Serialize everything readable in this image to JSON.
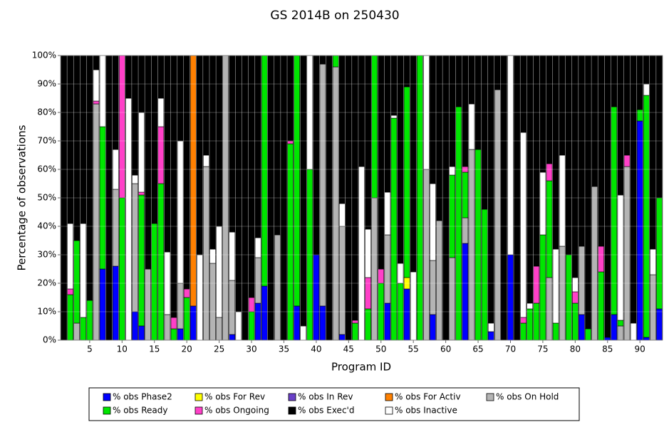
{
  "chart_data": {
    "type": "stacked_bar",
    "title": "GS 2014B on 250430",
    "x_label": "Program ID",
    "y_label": "Percentage of observations",
    "categories": [
      null,
      null,
      null,
      null,
      5,
      null,
      null,
      null,
      null,
      10,
      null,
      null,
      null,
      null,
      15,
      null,
      null,
      null,
      null,
      20,
      null,
      null,
      null,
      null,
      25,
      null,
      null,
      null,
      null,
      30,
      null,
      null,
      null,
      null,
      35,
      null,
      null,
      null,
      null,
      40,
      null,
      null,
      null,
      null,
      45,
      null,
      null,
      null,
      null,
      50,
      null,
      null,
      null,
      null,
      55,
      null,
      null,
      null,
      null,
      60,
      null,
      null,
      null,
      null,
      65,
      null,
      null,
      null,
      null,
      70,
      null,
      null,
      null,
      null,
      75,
      null,
      null,
      null,
      null,
      80,
      null,
      null,
      null,
      null,
      85,
      null,
      null,
      null,
      null,
      90,
      null,
      null,
      null
    ],
    "ylim": [
      0,
      100
    ],
    "yticks": [
      {
        "value": 0,
        "label": "0%"
      },
      {
        "value": 10,
        "label": "10%"
      },
      {
        "value": 20,
        "label": "20%"
      },
      {
        "value": 30,
        "label": "30%"
      },
      {
        "value": 40,
        "label": "40%"
      },
      {
        "value": 50,
        "label": "50%"
      },
      {
        "value": 60,
        "label": "60%"
      },
      {
        "value": 70,
        "label": "70%"
      },
      {
        "value": 80,
        "label": "80%"
      },
      {
        "value": 90,
        "label": "90%"
      },
      {
        "value": 100,
        "label": "100%"
      }
    ],
    "grid": true,
    "series": [
      {
        "name": "% obs Phase2",
        "color": "#0000ff",
        "values": [
          0,
          0,
          0,
          0,
          0,
          0,
          25,
          0,
          26,
          0,
          0,
          10,
          5,
          0,
          0,
          0,
          0,
          0,
          4,
          0,
          12,
          0,
          0,
          0,
          0,
          0,
          2,
          0,
          0,
          0,
          13,
          19,
          0,
          0,
          0,
          0,
          12,
          0,
          0,
          30,
          12,
          0,
          0,
          2,
          0,
          0,
          0,
          0,
          0,
          0,
          13,
          0,
          0,
          18,
          0,
          0,
          0,
          9,
          0,
          0,
          0,
          0,
          34,
          0,
          0,
          0,
          3,
          0,
          0,
          30,
          0,
          0,
          0,
          0,
          0,
          0,
          0,
          0,
          0,
          0,
          9,
          0,
          0,
          0,
          1,
          9,
          0,
          0,
          0,
          77,
          1,
          0,
          11
        ]
      },
      {
        "name": "% obs For Rev",
        "color": "#ffff00",
        "values": [
          0,
          0,
          0,
          0,
          0,
          0,
          0,
          0,
          0,
          0,
          0,
          0,
          0,
          0,
          0,
          0,
          0,
          0,
          0,
          0,
          0,
          0,
          0,
          0,
          0,
          0,
          0,
          0,
          0,
          0,
          0,
          0,
          0,
          0,
          0,
          0,
          0,
          0,
          0,
          0,
          0,
          0,
          0,
          0,
          0,
          0,
          0,
          0,
          0,
          0,
          0,
          0,
          0,
          4,
          0,
          0,
          0,
          0,
          0,
          0,
          0,
          0,
          0,
          0,
          0,
          0,
          0,
          0,
          0,
          0,
          0,
          0,
          0,
          0,
          0,
          0,
          0,
          0,
          0,
          0,
          0,
          0,
          0,
          0,
          0,
          0,
          0,
          0,
          0,
          0,
          0,
          0,
          0
        ]
      },
      {
        "name": "% obs In Rev",
        "color": "#6a40c8",
        "values": [
          0,
          0,
          0,
          0,
          0,
          0,
          0,
          0,
          0,
          0,
          0,
          0,
          0,
          0,
          0,
          0,
          0,
          0,
          0,
          0,
          0,
          0,
          0,
          0,
          0,
          0,
          0,
          0,
          0,
          0,
          0,
          0,
          0,
          0,
          0,
          0,
          0,
          0,
          0,
          0,
          0,
          0,
          0,
          0,
          0,
          0,
          0,
          0,
          0,
          0,
          0,
          0,
          0,
          0,
          0,
          0,
          0,
          0,
          0,
          0,
          0,
          0,
          0,
          0,
          0,
          0,
          0,
          0,
          0,
          0,
          0,
          0,
          0,
          0,
          0,
          0,
          0,
          0,
          0,
          0,
          0,
          0,
          0,
          0,
          0,
          0,
          0,
          0,
          0,
          0,
          0,
          0,
          0
        ]
      },
      {
        "name": "% obs For Activ",
        "color": "#ff8000",
        "values": [
          0,
          0,
          0,
          0,
          0,
          0,
          0,
          0,
          0,
          0,
          0,
          0,
          0,
          0,
          0,
          0,
          0,
          0,
          0,
          0,
          88,
          0,
          0,
          0,
          0,
          0,
          0,
          0,
          0,
          0,
          0,
          0,
          0,
          0,
          0,
          0,
          0,
          0,
          0,
          0,
          0,
          0,
          0,
          0,
          0,
          0,
          0,
          0,
          0,
          0,
          0,
          0,
          0,
          0,
          0,
          0,
          0,
          0,
          0,
          0,
          0,
          0,
          0,
          0,
          0,
          0,
          0,
          0,
          0,
          0,
          0,
          0,
          0,
          0,
          0,
          0,
          0,
          0,
          0,
          0,
          0,
          0,
          0,
          0,
          0,
          0,
          0,
          0,
          0,
          0,
          0,
          0,
          0
        ]
      },
      {
        "name": "% obs On Hold",
        "color": "#b4b4b4",
        "values": [
          0,
          0,
          6,
          0,
          0,
          83,
          0,
          0,
          27,
          0,
          0,
          45,
          0,
          25,
          0,
          0,
          9,
          0,
          16,
          0,
          0,
          0,
          61,
          27,
          8,
          100,
          19,
          0,
          0,
          0,
          16,
          0,
          0,
          37,
          0,
          0,
          0,
          0,
          0,
          0,
          85,
          0,
          96,
          38,
          0,
          0,
          0,
          0,
          50,
          0,
          24,
          0,
          0,
          0,
          0,
          0,
          60,
          19,
          42,
          0,
          29,
          0,
          9,
          67,
          0,
          0,
          0,
          88,
          0,
          0,
          0,
          0,
          0,
          0,
          0,
          22,
          0,
          33,
          0,
          0,
          24,
          0,
          54,
          0,
          0,
          0,
          5,
          61,
          0,
          0,
          0,
          23,
          0
        ]
      },
      {
        "name": "% obs Ready",
        "color": "#00e600",
        "values": [
          0,
          16,
          29,
          8,
          14,
          0,
          50,
          0,
          0,
          50,
          0,
          0,
          46,
          0,
          41,
          55,
          0,
          4,
          0,
          15,
          0,
          0,
          0,
          0,
          0,
          0,
          0,
          0,
          0,
          10,
          0,
          81,
          0,
          0,
          0,
          69,
          88,
          0,
          60,
          0,
          0,
          0,
          4,
          0,
          0,
          6,
          0,
          11,
          50,
          20,
          0,
          78,
          20,
          67,
          0,
          100,
          0,
          0,
          0,
          0,
          29,
          82,
          16,
          0,
          67,
          46,
          0,
          0,
          0,
          0,
          0,
          6,
          11,
          13,
          37,
          34,
          6,
          0,
          30,
          13,
          0,
          4,
          0,
          24,
          0,
          73,
          2,
          0,
          0,
          4,
          85,
          0,
          39
        ]
      },
      {
        "name": "% obs Ongoing",
        "color": "#ff40c8",
        "values": [
          0,
          2,
          0,
          0,
          0,
          1,
          0,
          0,
          0,
          50,
          0,
          0,
          1,
          0,
          0,
          20,
          0,
          4,
          0,
          3,
          0,
          0,
          0,
          0,
          0,
          0,
          0,
          0,
          0,
          5,
          0,
          0,
          0,
          0,
          0,
          1,
          0,
          0,
          0,
          0,
          0,
          0,
          0,
          0,
          0,
          1,
          0,
          11,
          0,
          5,
          0,
          0,
          0,
          0,
          0,
          0,
          0,
          0,
          0,
          0,
          0,
          0,
          2,
          0,
          0,
          0,
          0,
          0,
          0,
          0,
          0,
          2,
          0,
          13,
          0,
          6,
          0,
          0,
          0,
          4,
          0,
          0,
          0,
          9,
          0,
          0,
          0,
          4,
          0,
          0,
          0,
          0,
          0
        ]
      },
      {
        "name": "% obs Exec'd",
        "color": "#000000",
        "values": [
          100,
          59,
          65,
          59,
          86,
          5,
          0,
          100,
          33,
          0,
          15,
          42,
          20,
          75,
          59,
          15,
          69,
          92,
          30,
          82,
          0,
          70,
          35,
          68,
          60,
          0,
          62,
          90,
          100,
          85,
          64,
          0,
          100,
          63,
          100,
          30,
          0,
          95,
          0,
          70,
          3,
          100,
          0,
          52,
          100,
          93,
          39,
          61,
          0,
          75,
          48,
          21,
          73,
          11,
          76,
          0,
          0,
          45,
          58,
          100,
          39,
          18,
          39,
          17,
          33,
          54,
          94,
          12,
          100,
          0,
          100,
          27,
          87,
          74,
          41,
          38,
          68,
          35,
          70,
          78,
          67,
          96,
          46,
          67,
          99,
          18,
          49,
          35,
          94,
          19,
          10,
          68,
          50
        ]
      },
      {
        "name": "% obs Inactive",
        "color": "#ffffff",
        "values": [
          0,
          23,
          0,
          33,
          0,
          11,
          25,
          0,
          14,
          0,
          85,
          3,
          28,
          0,
          0,
          10,
          22,
          0,
          50,
          0,
          0,
          30,
          4,
          5,
          32,
          0,
          17,
          10,
          0,
          0,
          7,
          0,
          0,
          0,
          0,
          0,
          0,
          5,
          40,
          0,
          0,
          0,
          0,
          8,
          0,
          0,
          61,
          17,
          0,
          0,
          15,
          1,
          7,
          0,
          24,
          0,
          40,
          27,
          0,
          0,
          3,
          0,
          0,
          16,
          0,
          0,
          3,
          0,
          0,
          70,
          0,
          65,
          2,
          0,
          22,
          0,
          26,
          32,
          0,
          5,
          0,
          0,
          0,
          0,
          0,
          0,
          44,
          0,
          6,
          0,
          4,
          9,
          0
        ]
      }
    ]
  }
}
